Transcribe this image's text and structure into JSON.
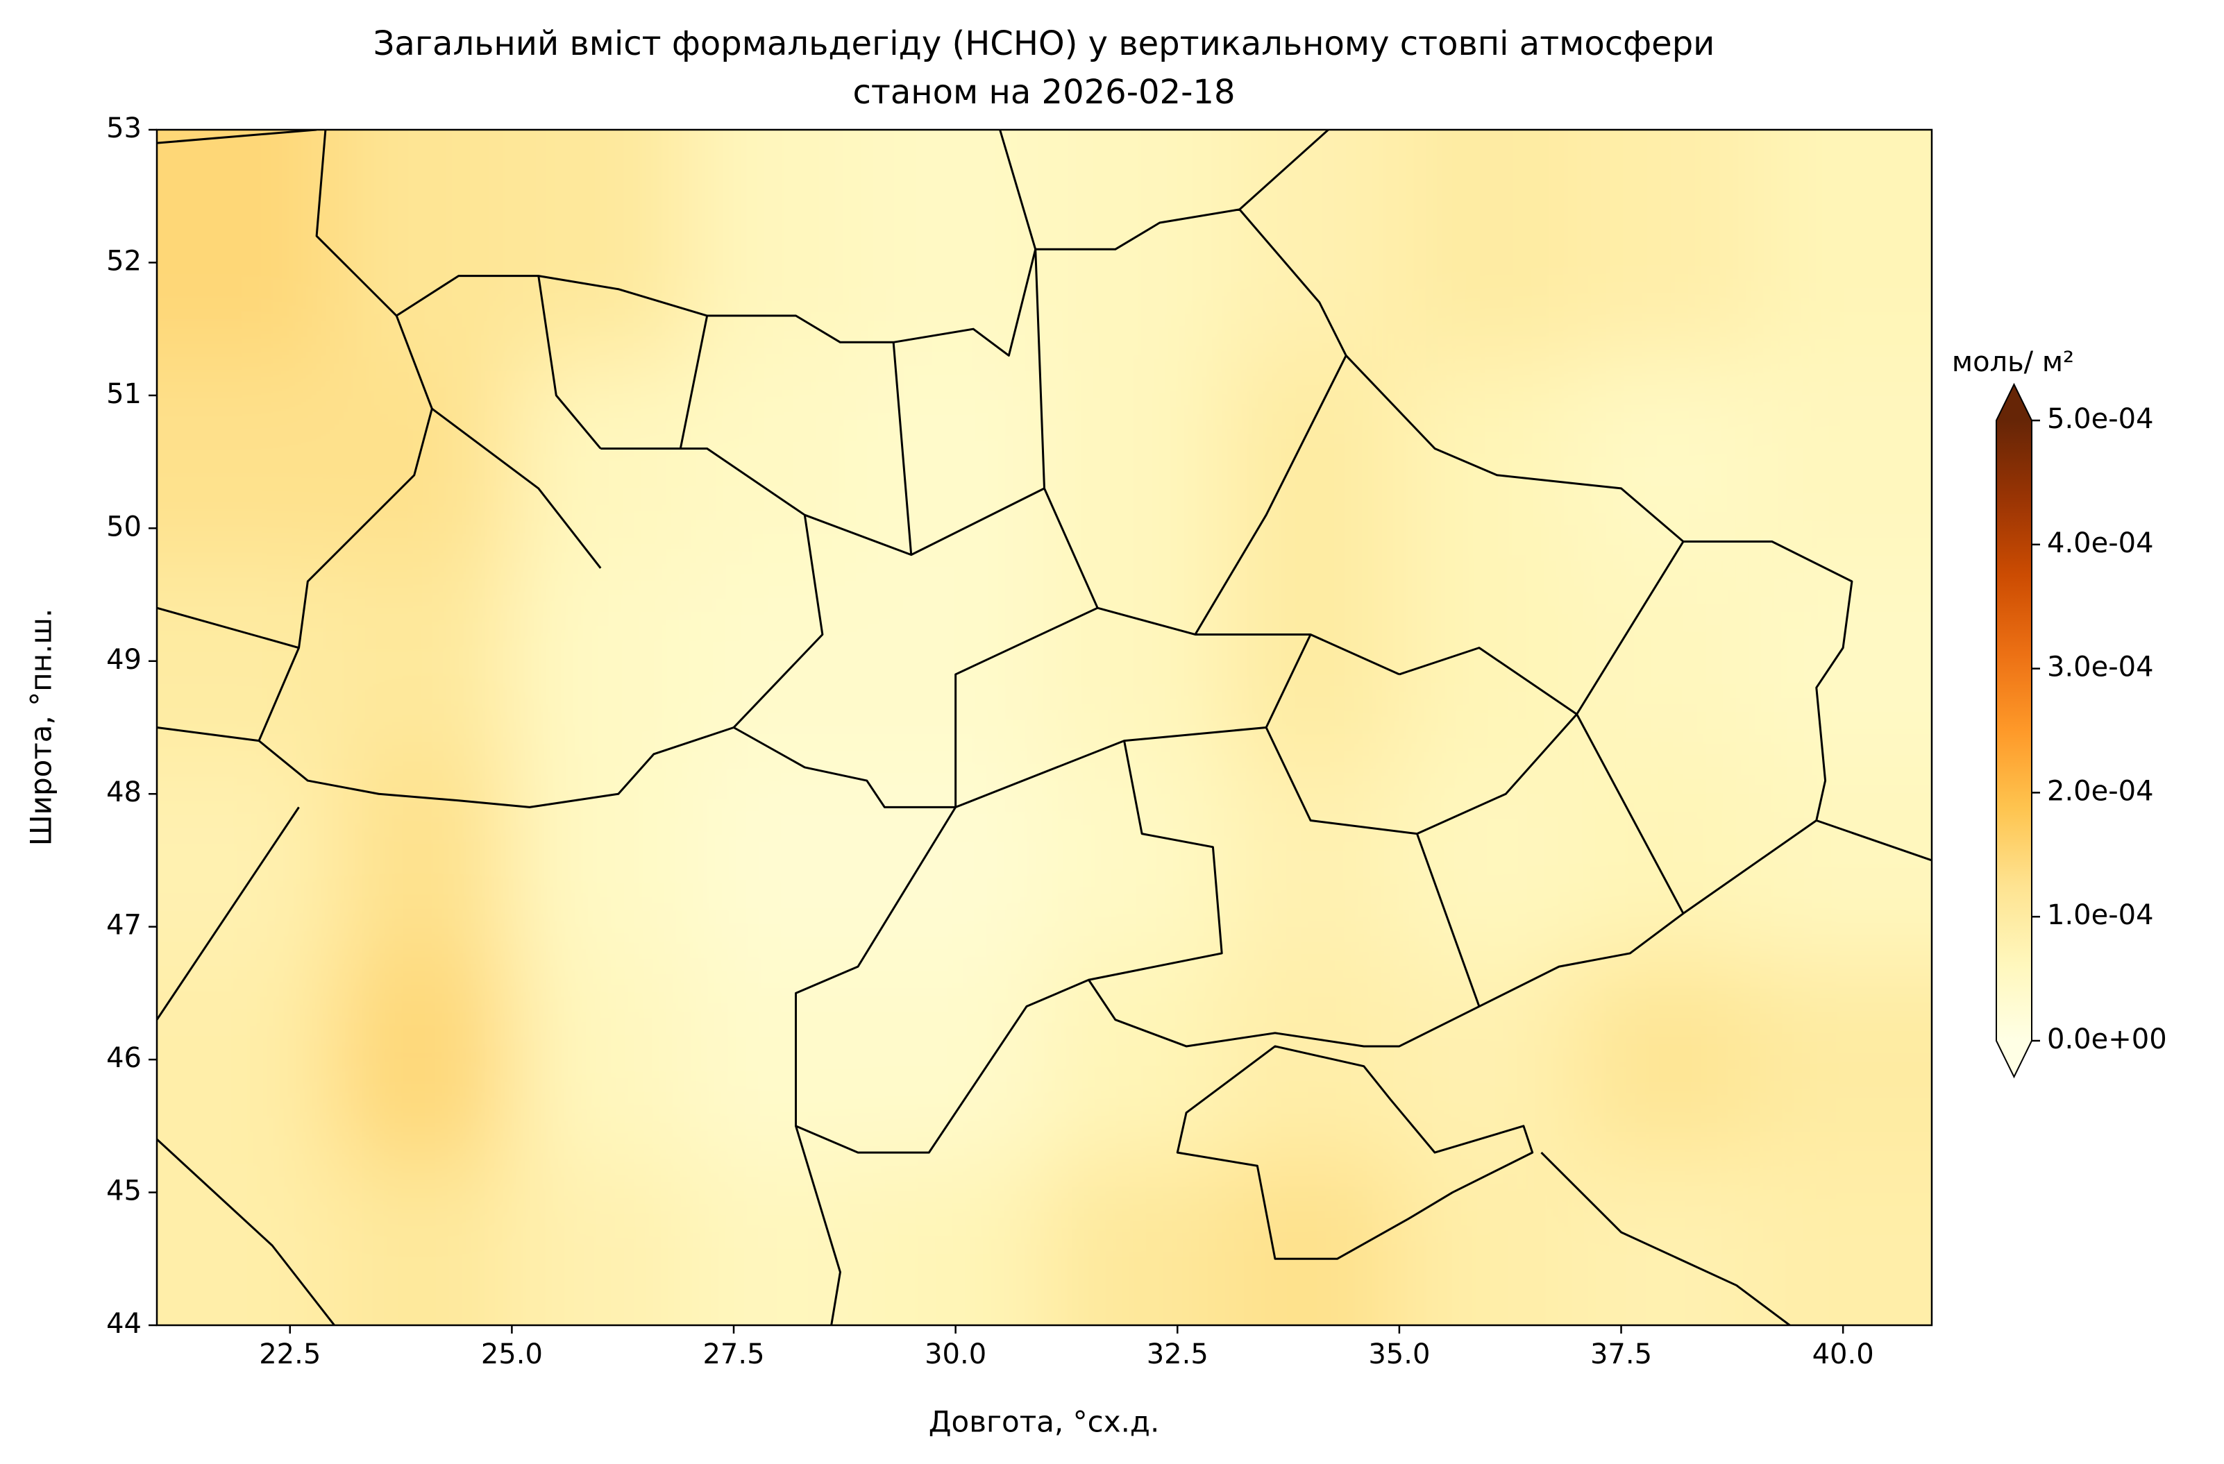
{
  "chart_data": {
    "type": "heatmap",
    "title": "Загальний вміст формальдегіду (HCHO) у вертикальному стовпі атмосфери",
    "subtitle": "станом на 2026-02-18",
    "xlabel": "Довгота, °сх.д.",
    "ylabel": "Широта, °пн.ш.",
    "xlim": [
      21,
      41
    ],
    "ylim": [
      44,
      53
    ],
    "xticks": [
      22.5,
      {
        "value": 25,
        "label": "25.0"
      },
      27.5,
      {
        "value": 30,
        "label": "30.0"
      },
      32.5,
      {
        "value": 35,
        "label": "35.0"
      },
      37.5,
      {
        "value": 40,
        "label": "40.0"
      }
    ],
    "yticks": [
      44,
      45,
      46,
      47,
      48,
      49,
      50,
      51,
      52,
      53
    ],
    "x": [
      22,
      24,
      26,
      28,
      30,
      32,
      34,
      36,
      38,
      40
    ],
    "y": [
      44.5,
      46,
      47.5,
      49,
      50.5,
      52
    ],
    "z": [
      [
        9e-05,
        0.00011,
        8e-05,
        6e-05,
        7e-05,
        0.00011,
        0.00013,
        9e-05,
        8e-05,
        9e-05
      ],
      [
        9e-05,
        0.00015,
        6e-05,
        4e-05,
        4e-05,
        7e-05,
        9e-05,
        8e-05,
        0.00012,
        0.0001
      ],
      [
        8e-05,
        0.00013,
        5e-05,
        3e-05,
        3e-05,
        5e-05,
        8e-05,
        6e-05,
        7e-05,
        6e-05
      ],
      [
        0.0001,
        0.00011,
        5e-05,
        4e-05,
        4e-05,
        6e-05,
        0.0001,
        7e-05,
        6e-05,
        5e-05
      ],
      [
        0.00013,
        0.00013,
        6e-05,
        5e-05,
        4e-05,
        6e-05,
        0.0001,
        7e-05,
        5e-05,
        6e-05
      ],
      [
        0.00015,
        0.00012,
        0.00011,
        6e-05,
        5e-05,
        6e-05,
        8e-05,
        0.0001,
        9e-05,
        7e-05
      ]
    ],
    "colorbar": {
      "label": "моль/ м²",
      "clim": [
        0,
        0.0005
      ],
      "ticks": [
        {
          "value": 0,
          "label": "0.0e+00"
        },
        {
          "value": 0.0001,
          "label": "1.0e-04"
        },
        {
          "value": 0.0002,
          "label": "2.0e-04"
        },
        {
          "value": 0.0003,
          "label": "3.0e-04"
        },
        {
          "value": 0.0004,
          "label": "4.0e-04"
        },
        {
          "value": 0.0005,
          "label": "5.0e-04"
        }
      ]
    }
  }
}
